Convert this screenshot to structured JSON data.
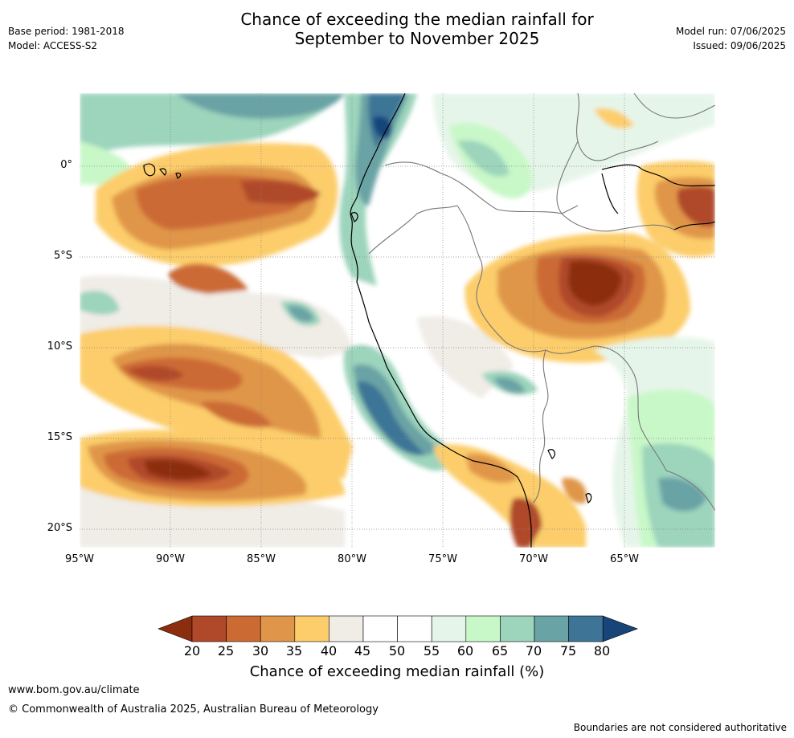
{
  "header": {
    "title_line1": "Chance of exceeding the median rainfall for",
    "title_line2": "September to November 2025",
    "base_period": "Base period: 1981-2018",
    "model": "Model: ACCESS-S2",
    "model_run": "Model run: 07/06/2025",
    "issued": "Issued: 09/06/2025"
  },
  "map": {
    "region": "Western South America and Eastern Pacific",
    "lat_labels": [
      "0°",
      "5°S",
      "10°S",
      "15°S",
      "20°S"
    ],
    "lon_labels": [
      "95°W",
      "90°W",
      "85°W",
      "80°W",
      "75°W",
      "70°W",
      "65°W"
    ],
    "features": [
      "probability-fill",
      "coastline",
      "national-borders",
      "graticule"
    ]
  },
  "colorbar": {
    "ticks": [
      "20",
      "25",
      "30",
      "35",
      "40",
      "45",
      "50",
      "55",
      "60",
      "65",
      "70",
      "75",
      "80"
    ],
    "colors": [
      "#8c2d0f",
      "#b0482a",
      "#cc6a34",
      "#e0964a",
      "#fccd6a",
      "#f0ece6",
      "#ffffff",
      "#ffffff",
      "#e6f5e9",
      "#c8f8c8",
      "#9cd4bc",
      "#6aa3a5",
      "#3e7596",
      "#17457a"
    ],
    "label": "Chance of exceeding median rainfall (%)"
  },
  "footer": {
    "website": "www.bom.gov.au/climate",
    "copyright": "© Commonwealth of Australia 2025, Australian Bureau of Meteorology",
    "disclaimer": "Boundaries are not considered authoritative"
  }
}
